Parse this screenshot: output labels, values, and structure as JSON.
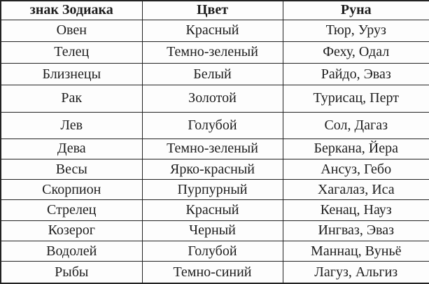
{
  "table": {
    "columns": [
      {
        "label": "знак Зодиака"
      },
      {
        "label": "Цвет"
      },
      {
        "label": "Руна"
      }
    ],
    "rows": [
      {
        "sign": "Овен",
        "color": "Красный",
        "runes": "Тюр, Уруз"
      },
      {
        "sign": "Телец",
        "color": "Темно-зеленый",
        "runes": "Феху, Одал"
      },
      {
        "sign": "Близнецы",
        "color": "Белый",
        "runes": "Райдо, Эваз"
      },
      {
        "sign": "Рак",
        "color": "Золотой",
        "runes": "Турисац, Перт"
      },
      {
        "sign": "Лев",
        "color": "Голубой",
        "runes": "Сол, Дагаз"
      },
      {
        "sign": "Дева",
        "color": "Темно-зеленый",
        "runes": "Беркана, Йера"
      },
      {
        "sign": "Весы",
        "color": "Ярко-красный",
        "runes": "Ансуз, Гебо"
      },
      {
        "sign": "Скорпион",
        "color": "Пурпурный",
        "runes": "Хагалаз, Иса"
      },
      {
        "sign": "Стрелец",
        "color": "Красный",
        "runes": "Кенац, Науз"
      },
      {
        "sign": "Козерог",
        "color": "Черный",
        "runes": "Ингваз, Эваз"
      },
      {
        "sign": "Водолей",
        "color": "Голубой",
        "runes": "Маннац, Вуньё"
      },
      {
        "sign": "Рыбы",
        "color": "Темно-синий",
        "runes": "Лагуз, Альгиз"
      }
    ]
  },
  "colors": {
    "border": "#222222",
    "text": "#1e1e1e",
    "background": "#fdfdfd"
  }
}
